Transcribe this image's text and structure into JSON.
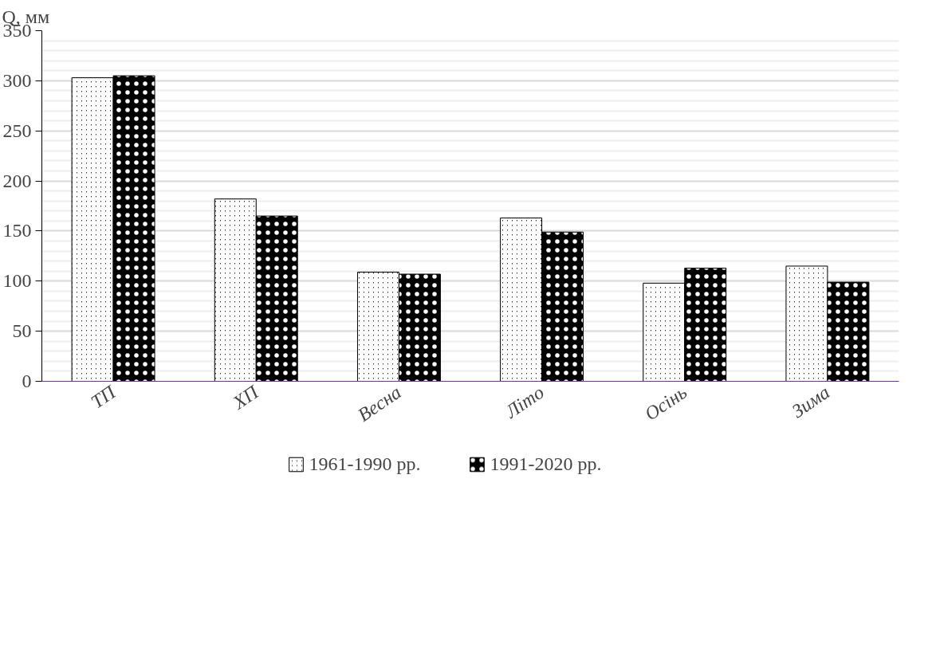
{
  "chart_data": {
    "type": "bar",
    "ylabel": "Q, мм",
    "categories": [
      "ТП",
      "ХП",
      "Весна",
      "Літо",
      "Осінь",
      "Зима"
    ],
    "series": [
      {
        "name": "1961-1990 рр.",
        "color": "#000000",
        "values": [
          303,
          182,
          109,
          163,
          98,
          115
        ]
      },
      {
        "name": "1991-2020 рр.",
        "color": "#000000",
        "values": [
          305,
          165,
          107,
          149,
          113,
          99
        ]
      }
    ],
    "ylim": [
      0,
      350
    ],
    "yticks": [
      0,
      50,
      100,
      150,
      200,
      250,
      300,
      350
    ],
    "grid": "y",
    "legend": "bottom"
  }
}
